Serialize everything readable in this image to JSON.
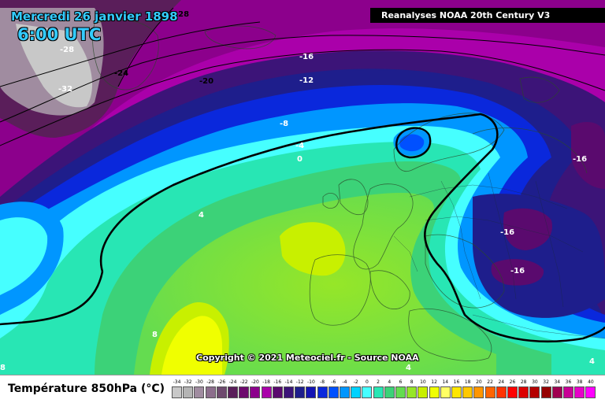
{
  "title": {
    "date": "Mercredi 26 janvier 1898",
    "time": "6:00 UTC"
  },
  "source": "Reanalyses NOAA 20th Century V3",
  "copyright": "Copyright © 2021 Meteociel.fr - Source NOAA",
  "legend": {
    "title": "Température 850hPa (°C)",
    "scale": [
      {
        "v": "-34",
        "c": "#c8c8c8"
      },
      {
        "v": "-32",
        "c": "#b4b4b4"
      },
      {
        "v": "-30",
        "c": "#a08ca0"
      },
      {
        "v": "-28",
        "c": "#8c6e8c"
      },
      {
        "v": "-26",
        "c": "#6e4a6e"
      },
      {
        "v": "-24",
        "c": "#5a1e5a"
      },
      {
        "v": "-22",
        "c": "#6e0a6e"
      },
      {
        "v": "-20",
        "c": "#8c008c"
      },
      {
        "v": "-18",
        "c": "#aa00aa"
      },
      {
        "v": "-16",
        "c": "#5a0a6e"
      },
      {
        "v": "-14",
        "c": "#3c1478"
      },
      {
        "v": "-12",
        "c": "#1e1e8c"
      },
      {
        "v": "-10",
        "c": "#1414b4"
      },
      {
        "v": "-8",
        "c": "#0a28dc"
      },
      {
        "v": "-6",
        "c": "#0050ff"
      },
      {
        "v": "-4",
        "c": "#0096ff"
      },
      {
        "v": "-2",
        "c": "#00d2ff"
      },
      {
        "v": "0",
        "c": "#46ffff"
      },
      {
        "v": "2",
        "c": "#28e6b4"
      },
      {
        "v": "4",
        "c": "#3cd278"
      },
      {
        "v": "6",
        "c": "#64dc50"
      },
      {
        "v": "8",
        "c": "#96e628"
      },
      {
        "v": "10",
        "c": "#c8f000"
      },
      {
        "v": "12",
        "c": "#f0ff00"
      },
      {
        "v": "14",
        "c": "#ffff64"
      },
      {
        "v": "16",
        "c": "#ffe600"
      },
      {
        "v": "18",
        "c": "#ffc800"
      },
      {
        "v": "20",
        "c": "#ff9600"
      },
      {
        "v": "22",
        "c": "#ff6400"
      },
      {
        "v": "24",
        "c": "#ff3200"
      },
      {
        "v": "26",
        "c": "#ff0000"
      },
      {
        "v": "28",
        "c": "#dc0000"
      },
      {
        "v": "30",
        "c": "#b40000"
      },
      {
        "v": "32",
        "c": "#960000"
      },
      {
        "v": "34",
        "c": "#a00050"
      },
      {
        "v": "36",
        "c": "#c80096"
      },
      {
        "v": "38",
        "c": "#e600c8"
      },
      {
        "v": "40",
        "c": "#ff00ff"
      }
    ]
  },
  "isotherm_labels": {
    "l1": "-28",
    "l2": "-28",
    "l3": "-24",
    "l4": "-32",
    "l5": "-20",
    "l6": "-16",
    "l7": "-12",
    "l8": "-8",
    "l9": "-4",
    "l10": "0",
    "l11": "4",
    "l12": "8",
    "l13": "-16",
    "l14": "-16",
    "l15": "-16",
    "l16": "4",
    "l17": "4",
    "l18": "8"
  }
}
